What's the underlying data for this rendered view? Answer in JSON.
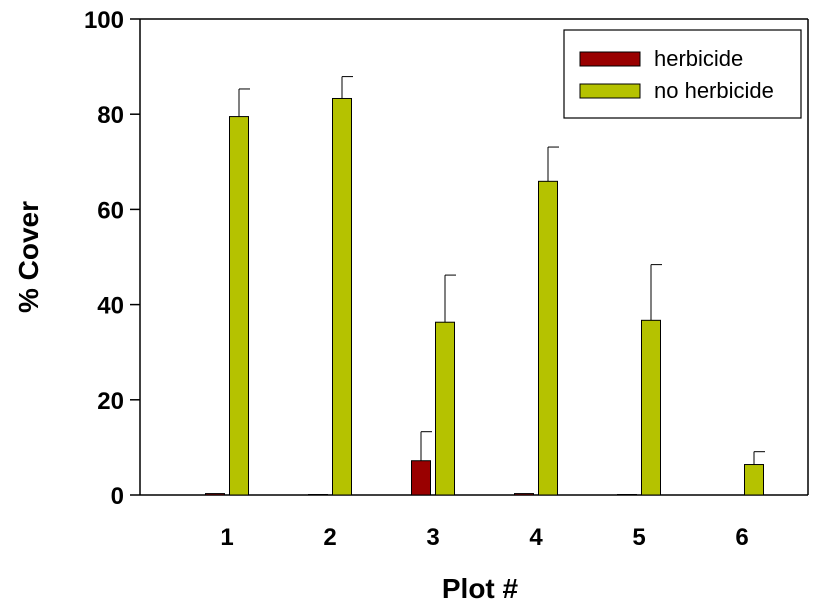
{
  "chart_data": {
    "type": "bar",
    "title": "",
    "xlabel": "Plot #",
    "ylabel": "% Cover",
    "categories": [
      "1",
      "2",
      "3",
      "4",
      "5",
      "6"
    ],
    "ylim": [
      0,
      100
    ],
    "yticks": [
      0,
      20,
      40,
      60,
      80,
      100
    ],
    "grid": false,
    "legend_position": "top-right",
    "series": [
      {
        "name": "herbicide",
        "color": "#990000",
        "values": [
          0.3,
          0.1,
          7.2,
          0.3,
          0.1,
          0
        ],
        "error": [
          0,
          0,
          6.1,
          0,
          0,
          0
        ]
      },
      {
        "name": "no herbicide",
        "color": "#b5c200",
        "values": [
          79.5,
          83.3,
          36.3,
          65.9,
          36.7,
          6.4
        ],
        "error": [
          5.8,
          4.6,
          9.9,
          7.2,
          11.7,
          2.7
        ]
      }
    ]
  }
}
